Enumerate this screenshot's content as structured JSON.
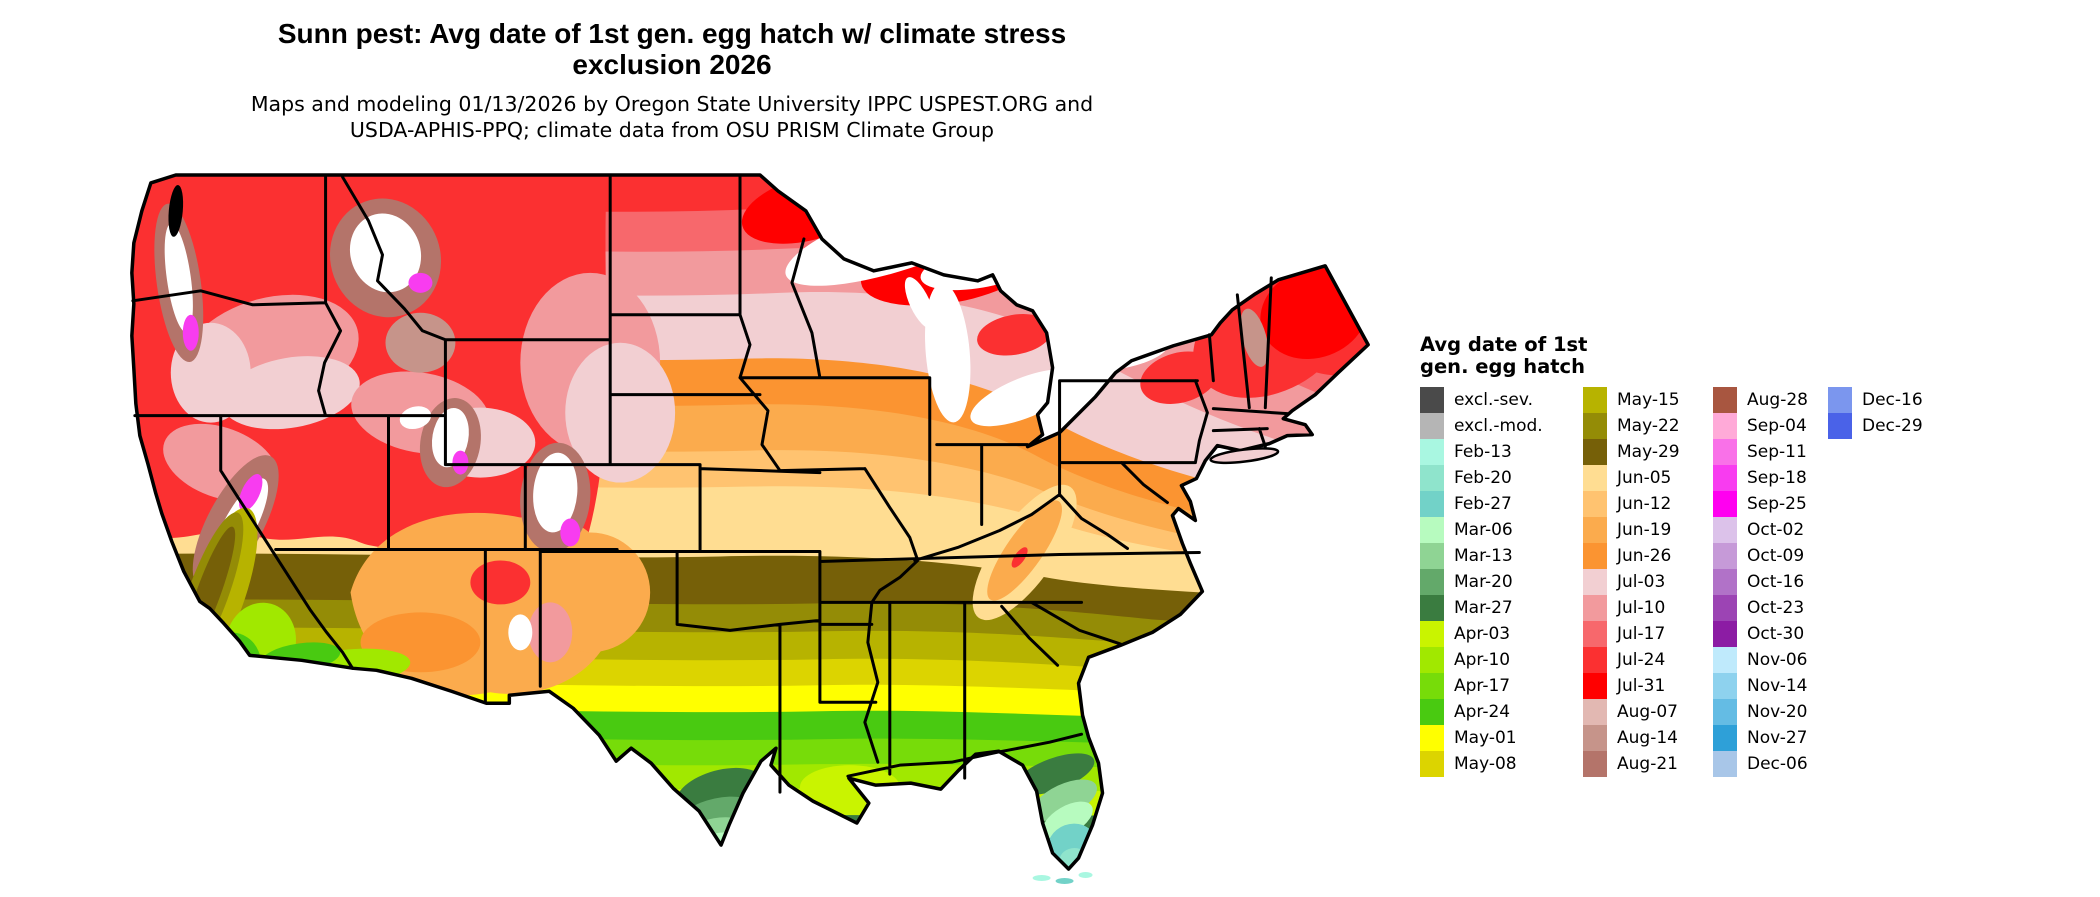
{
  "title": {
    "line1": "Sunn pest: Avg date of 1st gen. egg hatch w/ climate stress",
    "line2": "exclusion 2026"
  },
  "subtitle": {
    "line1": "Maps and modeling 01/13/2026 by Oregon State University IPPC USPEST.ORG and",
    "line2": "USDA-APHIS-PPQ; climate data from OSU PRISM Climate Group"
  },
  "legend": {
    "title_line1": "Avg date of 1st",
    "title_line2": "gen. egg hatch",
    "columns": [
      {
        "items": [
          {
            "label": "excl.-sev.",
            "color": "#4a4a4a"
          },
          {
            "label": "excl.-mod.",
            "color": "#b5b5b5"
          },
          {
            "label": "Feb-13",
            "color": "#a9f7e1"
          },
          {
            "label": "Feb-20",
            "color": "#8fe4cc"
          },
          {
            "label": "Feb-27",
            "color": "#72d2c8"
          },
          {
            "label": "Mar-06",
            "color": "#b7fbbf"
          },
          {
            "label": "Mar-13",
            "color": "#8fd494"
          },
          {
            "label": "Mar-20",
            "color": "#63a96a"
          },
          {
            "label": "Mar-27",
            "color": "#3a7c40"
          },
          {
            "label": "Apr-03",
            "color": "#c9f400"
          },
          {
            "label": "Apr-10",
            "color": "#a1e800"
          },
          {
            "label": "Apr-17",
            "color": "#77dc09"
          },
          {
            "label": "Apr-24",
            "color": "#49ca11"
          },
          {
            "label": "May-01",
            "color": "#ffff00"
          },
          {
            "label": "May-08",
            "color": "#dcd400"
          }
        ]
      },
      {
        "items": [
          {
            "label": "May-15",
            "color": "#b7b300"
          },
          {
            "label": "May-22",
            "color": "#948c06"
          },
          {
            "label": "May-29",
            "color": "#766008"
          },
          {
            "label": "Jun-05",
            "color": "#ffdd92"
          },
          {
            "label": "Jun-12",
            "color": "#ffc370"
          },
          {
            "label": "Jun-19",
            "color": "#fbab4d"
          },
          {
            "label": "Jun-26",
            "color": "#fb9431"
          },
          {
            "label": "Jul-03",
            "color": "#f2cfd2"
          },
          {
            "label": "Jul-10",
            "color": "#f29a9d"
          },
          {
            "label": "Jul-17",
            "color": "#f7686c"
          },
          {
            "label": "Jul-24",
            "color": "#fb3031"
          },
          {
            "label": "Jul-31",
            "color": "#ff0000"
          },
          {
            "label": "Aug-07",
            "color": "#e2b8b2"
          },
          {
            "label": "Aug-14",
            "color": "#c6948a"
          },
          {
            "label": "Aug-21",
            "color": "#b4746a"
          }
        ]
      },
      {
        "items": [
          {
            "label": "Aug-28",
            "color": "#a85640"
          },
          {
            "label": "Sep-04",
            "color": "#ffaad8"
          },
          {
            "label": "Sep-11",
            "color": "#f971e8"
          },
          {
            "label": "Sep-18",
            "color": "#f83cf0"
          },
          {
            "label": "Sep-25",
            "color": "#ff00f0"
          },
          {
            "label": "Oct-02",
            "color": "#dcc2ea"
          },
          {
            "label": "Oct-09",
            "color": "#c69ad8"
          },
          {
            "label": "Oct-16",
            "color": "#b172c8"
          },
          {
            "label": "Oct-23",
            "color": "#9c44b4"
          },
          {
            "label": "Oct-30",
            "color": "#8c1ca4"
          },
          {
            "label": "Nov-06",
            "color": "#bfeafc"
          },
          {
            "label": "Nov-14",
            "color": "#8ed2ee"
          },
          {
            "label": "Nov-20",
            "color": "#64bce4"
          },
          {
            "label": "Nov-27",
            "color": "#2ea0d8"
          },
          {
            "label": "Dec-06",
            "color": "#a8c6e8"
          }
        ]
      },
      {
        "items": [
          {
            "label": "Dec-16",
            "color": "#7b96ee"
          },
          {
            "label": "Dec-29",
            "color": "#4a62e8"
          }
        ]
      }
    ]
  },
  "map": {
    "region": "Continental United States",
    "style": "raster choropleth of average 1st generation egg hatch date",
    "gradient_north_to_south": [
      "Jul-31",
      "Jul-24",
      "Jul-17",
      "Jul-10",
      "Jul-03",
      "Jun-26",
      "Jun-19",
      "Jun-12",
      "Jun-05",
      "May-29",
      "May-22",
      "May-15",
      "May-08",
      "May-01",
      "Apr-24",
      "Apr-17",
      "Apr-10",
      "Apr-03",
      "Mar-27",
      "Mar-20",
      "Mar-13",
      "Mar-06",
      "Feb-27"
    ],
    "notes": "Great Lakes shown white; western mountains show white cores with magenta fringes and gray-brown exclusion patches; southwest deserts orange; California central valley olive-green; earliest dates (Feb-Mar, teal/green) at south Florida and south Texas"
  }
}
